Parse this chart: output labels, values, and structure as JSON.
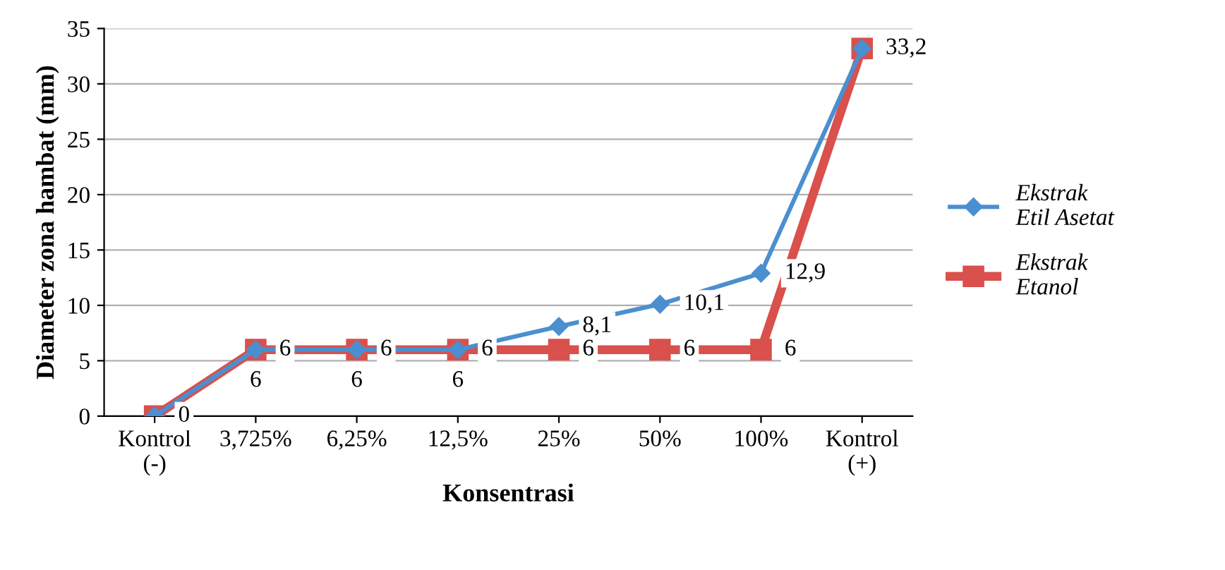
{
  "chart_data": {
    "type": "line",
    "xlabel": "Konsentrasi",
    "ylabel": "Diameter zona hambat (mm)",
    "categories": [
      "Kontrol\n(-)",
      "3,725%",
      "6,25%",
      "12,5%",
      "25%",
      "50%",
      "100%",
      "Kontrol\n(+)"
    ],
    "series": [
      {
        "name": "Ekstrak\nEtil Asetat",
        "color": "#4a8fd0",
        "marker": "diamond",
        "values": [
          0,
          6,
          6,
          6,
          8.1,
          10.1,
          12.9,
          33.2
        ],
        "value_labels": [
          null,
          "6",
          "6",
          "6",
          "8,1",
          "10,1",
          "12,9",
          null
        ]
      },
      {
        "name": "Ekstrak\nEtanol",
        "color": "#d9504c",
        "marker": "square",
        "values": [
          0,
          6,
          6,
          6,
          6,
          6,
          6,
          33.2
        ],
        "value_labels": [
          "0",
          "6",
          "6",
          "6",
          "6",
          "6",
          "6",
          "33,2"
        ]
      }
    ],
    "ylim": [
      0,
      35
    ],
    "yticks": [
      0,
      5,
      10,
      15,
      20,
      25,
      30,
      35
    ],
    "grid": "y",
    "legend": "right"
  }
}
